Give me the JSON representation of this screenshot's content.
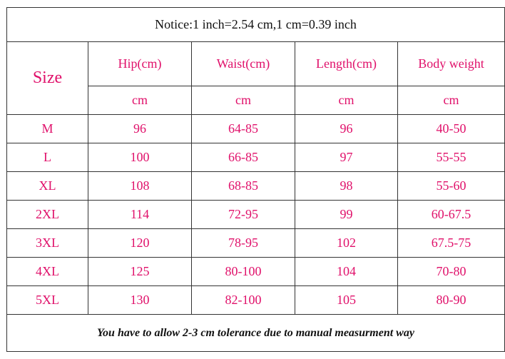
{
  "notice": "Notice:1 inch=2.54 cm,1 cm=0.39 inch",
  "table": {
    "size_header": "Size",
    "columns": [
      "Hip(cm)",
      "Waist(cm)",
      "Length(cm)",
      "Body weight"
    ],
    "units": [
      "cm",
      "cm",
      "cm",
      "cm"
    ],
    "rows": [
      [
        "M",
        "96",
        "64-85",
        "96",
        "40-50"
      ],
      [
        "L",
        "100",
        "66-85",
        "97",
        "55-55"
      ],
      [
        "XL",
        "108",
        "68-85",
        "98",
        "55-60"
      ],
      [
        "2XL",
        "114",
        "72-95",
        "99",
        "60-67.5"
      ],
      [
        "3XL",
        "120",
        "78-95",
        "102",
        "67.5-75"
      ],
      [
        "4XL",
        "125",
        "80-100",
        "104",
        "70-80"
      ],
      [
        "5XL",
        "130",
        "82-100",
        "105",
        "80-90"
      ]
    ]
  },
  "footer": "You have to allow 2-3 cm tolerance due to manual measurment way"
}
